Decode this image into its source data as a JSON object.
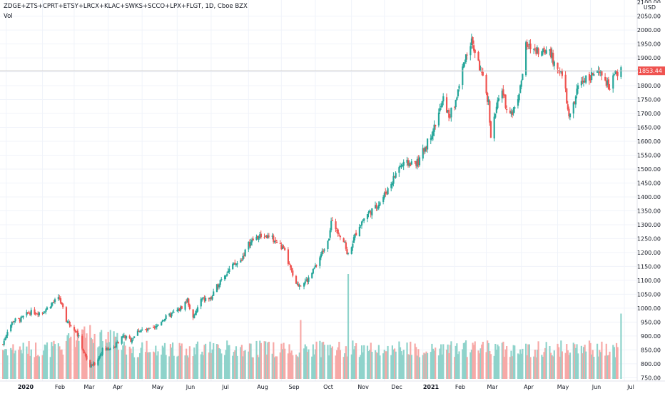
{
  "legend": {
    "symbol": "ZDGE+ZTS+CPRT+ETSY+LRCX+KLAC+SWKS+SCCO+LPX+FLGT, 1D, Cboe BZX",
    "volume_label": "Vol"
  },
  "price_axis": {
    "currency": "USD",
    "top_partial": "2100.00",
    "ticks": [
      "2050.00",
      "2000.00",
      "1950.00",
      "1900.00",
      "1850.00",
      "1800.00",
      "1750.00",
      "1700.00",
      "1650.00",
      "1600.00",
      "1550.00",
      "1500.00",
      "1450.00",
      "1400.00",
      "1350.00",
      "1300.00",
      "1250.00",
      "1200.00",
      "1150.00",
      "1100.00",
      "1050.00",
      "1000.00",
      "950.00",
      "900.00",
      "850.00",
      "800.00",
      "750.00"
    ],
    "last_price": "1853.44"
  },
  "time_axis": {
    "ticks": [
      "2020",
      "Feb",
      "Mar",
      "Apr",
      "May",
      "Jun",
      "Jul",
      "Aug",
      "Sep",
      "Oct",
      "Nov",
      "Dec",
      "2021",
      "Feb",
      "Mar",
      "Apr",
      "May",
      "Jun",
      "Jul"
    ],
    "bold": [
      "2020",
      "2021"
    ]
  },
  "colors": {
    "up": "#26a69a",
    "down": "#ef5350",
    "vol_up": "#8fd3cb",
    "vol_down": "#f7a9a7",
    "grid": "#f0f3fa",
    "axis_text": "#131722",
    "last_price_bg": "#ef5350",
    "last_price_line": "#c9c9c9"
  },
  "chart_data": {
    "type": "candlestick",
    "title": "ZDGE+ZTS+CPRT+ETSY+LRCX+KLAC+SWKS+SCCO+LPX+FLGT, 1D, Cboe BZX",
    "ylabel": "USD",
    "ylim": [
      738,
      2108
    ],
    "x_range": [
      "2019-12-30",
      "2021-07-06"
    ],
    "last_price": 1853.44,
    "close_anchors": [
      {
        "date": "2019-12-30",
        "close": 870
      },
      {
        "date": "2020-01-03",
        "close": 920
      },
      {
        "date": "2020-01-08",
        "close": 955
      },
      {
        "date": "2020-01-15",
        "close": 960
      },
      {
        "date": "2020-01-22",
        "close": 985
      },
      {
        "date": "2020-01-28",
        "close": 985
      },
      {
        "date": "2020-02-03",
        "close": 985
      },
      {
        "date": "2020-02-12",
        "close": 1020
      },
      {
        "date": "2020-02-18",
        "close": 1035
      },
      {
        "date": "2020-02-24",
        "close": 955
      },
      {
        "date": "2020-03-02",
        "close": 930
      },
      {
        "date": "2020-03-06",
        "close": 895
      },
      {
        "date": "2020-03-11",
        "close": 835
      },
      {
        "date": "2020-03-16",
        "close": 790
      },
      {
        "date": "2020-03-20",
        "close": 800
      },
      {
        "date": "2020-03-23",
        "close": 820
      },
      {
        "date": "2020-03-27",
        "close": 850
      },
      {
        "date": "2020-04-06",
        "close": 860
      },
      {
        "date": "2020-04-14",
        "close": 900
      },
      {
        "date": "2020-04-21",
        "close": 885
      },
      {
        "date": "2020-04-28",
        "close": 920
      },
      {
        "date": "2020-05-05",
        "close": 920
      },
      {
        "date": "2020-05-12",
        "close": 925
      },
      {
        "date": "2020-05-19",
        "close": 960
      },
      {
        "date": "2020-05-26",
        "close": 975
      },
      {
        "date": "2020-06-03",
        "close": 995
      },
      {
        "date": "2020-06-10",
        "close": 1030
      },
      {
        "date": "2020-06-15",
        "close": 960
      },
      {
        "date": "2020-06-22",
        "close": 1030
      },
      {
        "date": "2020-07-01",
        "close": 1035
      },
      {
        "date": "2020-07-10",
        "close": 1110
      },
      {
        "date": "2020-07-20",
        "close": 1150
      },
      {
        "date": "2020-07-27",
        "close": 1170
      },
      {
        "date": "2020-08-03",
        "close": 1230
      },
      {
        "date": "2020-08-10",
        "close": 1255
      },
      {
        "date": "2020-08-17",
        "close": 1260
      },
      {
        "date": "2020-08-24",
        "close": 1250
      },
      {
        "date": "2020-08-31",
        "close": 1225
      },
      {
        "date": "2020-09-04",
        "close": 1200
      },
      {
        "date": "2020-09-09",
        "close": 1140
      },
      {
        "date": "2020-09-14",
        "close": 1080
      },
      {
        "date": "2020-09-24",
        "close": 1100
      },
      {
        "date": "2020-09-30",
        "close": 1140
      },
      {
        "date": "2020-10-07",
        "close": 1200
      },
      {
        "date": "2020-10-13",
        "close": 1260
      },
      {
        "date": "2020-10-15",
        "close": 1310
      },
      {
        "date": "2020-10-20",
        "close": 1285
      },
      {
        "date": "2020-10-26",
        "close": 1240
      },
      {
        "date": "2020-10-30",
        "close": 1190
      },
      {
        "date": "2020-11-04",
        "close": 1250
      },
      {
        "date": "2020-11-09",
        "close": 1300
      },
      {
        "date": "2020-11-16",
        "close": 1340
      },
      {
        "date": "2020-11-23",
        "close": 1360
      },
      {
        "date": "2020-11-30",
        "close": 1400
      },
      {
        "date": "2020-12-07",
        "close": 1450
      },
      {
        "date": "2020-12-14",
        "close": 1510
      },
      {
        "date": "2020-12-21",
        "close": 1520
      },
      {
        "date": "2020-12-31",
        "close": 1525
      },
      {
        "date": "2021-01-06",
        "close": 1580
      },
      {
        "date": "2021-01-14",
        "close": 1650
      },
      {
        "date": "2021-01-22",
        "close": 1750
      },
      {
        "date": "2021-01-27",
        "close": 1690
      },
      {
        "date": "2021-02-01",
        "close": 1730
      },
      {
        "date": "2021-02-05",
        "close": 1800
      },
      {
        "date": "2021-02-10",
        "close": 1900
      },
      {
        "date": "2021-02-16",
        "close": 1960
      },
      {
        "date": "2021-02-22",
        "close": 1880
      },
      {
        "date": "2021-02-26",
        "close": 1820
      },
      {
        "date": "2021-03-03",
        "close": 1740
      },
      {
        "date": "2021-03-05",
        "close": 1620
      },
      {
        "date": "2021-03-10",
        "close": 1720
      },
      {
        "date": "2021-03-15",
        "close": 1790
      },
      {
        "date": "2021-03-18",
        "close": 1730
      },
      {
        "date": "2021-03-24",
        "close": 1700
      },
      {
        "date": "2021-03-31",
        "close": 1790
      },
      {
        "date": "2021-04-05",
        "close": 1940
      },
      {
        "date": "2021-04-12",
        "close": 1935
      },
      {
        "date": "2021-04-19",
        "close": 1920
      },
      {
        "date": "2021-04-26",
        "close": 1935
      },
      {
        "date": "2021-04-30",
        "close": 1870
      },
      {
        "date": "2021-05-05",
        "close": 1860
      },
      {
        "date": "2021-05-10",
        "close": 1780
      },
      {
        "date": "2021-05-13",
        "close": 1680
      },
      {
        "date": "2021-05-18",
        "close": 1740
      },
      {
        "date": "2021-05-21",
        "close": 1800
      },
      {
        "date": "2021-05-28",
        "close": 1830
      },
      {
        "date": "2021-06-04",
        "close": 1840
      },
      {
        "date": "2021-06-11",
        "close": 1840
      },
      {
        "date": "2021-06-18",
        "close": 1790
      },
      {
        "date": "2021-06-21",
        "close": 1830
      },
      {
        "date": "2021-06-28",
        "close": 1853.44
      }
    ],
    "volume_spikes": [
      {
        "date": "2020-09-18",
        "relative": 0.55
      },
      {
        "date": "2020-10-30",
        "relative": 0.98
      },
      {
        "date": "2021-06-28",
        "relative": 0.61
      }
    ]
  }
}
